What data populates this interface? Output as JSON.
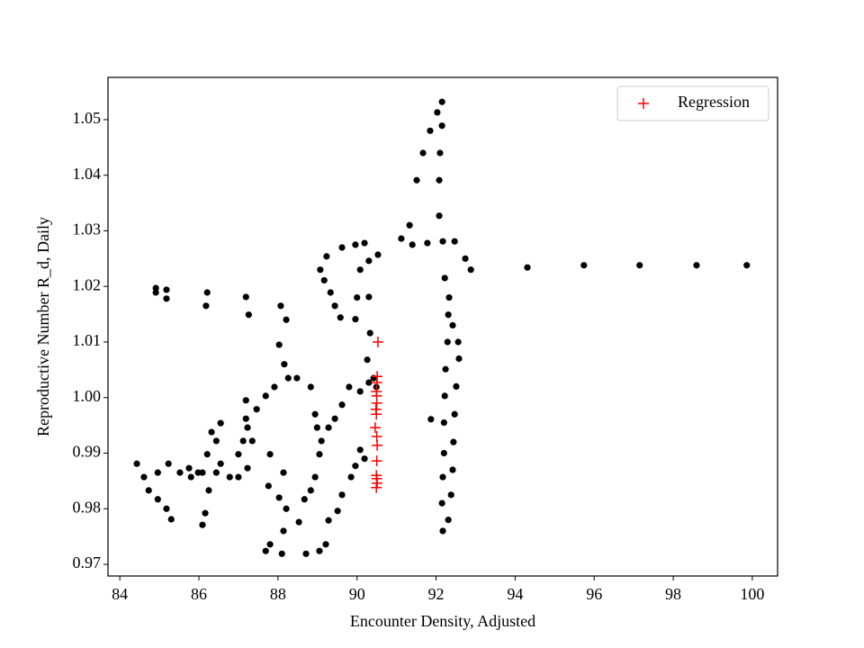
{
  "chart_data": {
    "type": "scatter",
    "xlabel": "Encounter Density, Adjusted",
    "ylabel": "Reproductive Number R_d, Daily",
    "xlim": [
      83.7,
      100.64
    ],
    "ylim": [
      0.9679,
      1.0576
    ],
    "xticks": [
      84,
      86,
      88,
      90,
      92,
      94,
      96,
      98,
      100
    ],
    "yticks": [
      0.97,
      0.98,
      0.99,
      {
        "value": 1,
        "label": "1.00"
      },
      1.01,
      1.02,
      1.03,
      1.04,
      1.05
    ],
    "legend": "upper right",
    "series": [
      {
        "color": "#000000",
        "marker": "dot",
        "x": [
          94.31,
          95.74,
          97.15,
          98.59,
          99.86,
          92.88,
          92.74,
          92.22,
          92.33,
          92.42,
          92.56,
          92.58,
          92.51,
          92.47,
          92.44,
          92.42,
          92.38,
          92.31,
          92.17,
          92.15,
          92.17,
          92.2,
          92.2,
          92.22,
          92.24,
          92.29,
          92.31,
          91.87,
          91.33,
          91.51,
          91.67,
          91.85,
          92.03,
          92.15,
          92.15,
          92.1,
          92.08,
          92.08,
          92.17,
          91.12,
          91.4,
          91.78,
          92.47,
          90.19,
          89.96,
          89.62,
          89.23,
          89.07,
          89.17,
          89.33,
          89.44,
          89.58,
          89.96,
          90.0,
          90.08,
          90.3,
          90.53,
          90.3,
          90.33,
          90.26,
          90.42,
          90.49,
          90.3,
          90.08,
          89.8,
          89.62,
          89.44,
          89.28,
          89.1,
          89.05,
          88.94,
          88.83,
          88.67,
          88.53,
          88.14,
          87.8,
          87.69,
          88.1,
          88.71,
          89.05,
          89.21,
          89.28,
          89.51,
          89.62,
          89.85,
          90.08,
          90.19,
          89.96,
          88.03,
          88.21,
          88.07,
          88.16,
          88.26,
          87.91,
          87.69,
          87.46,
          87.23,
          87.12,
          87.0,
          87.35,
          87.8,
          88.14,
          88.03,
          88.21,
          87.76,
          88.83,
          88.94,
          88.99,
          88.48,
          84.43,
          84.61,
          84.73,
          84.96,
          85.18,
          85.3,
          84.96,
          85.23,
          85.52,
          85.75,
          86.09,
          86.44,
          86.78,
          87.0,
          87.23,
          86.21,
          86.32,
          86.55,
          86.44,
          86.55,
          86.25,
          86.16,
          86.09,
          85.98,
          85.8,
          84.91,
          84.91,
          85.18,
          85.18,
          86.21,
          86.18,
          87.19,
          87.26,
          87.19,
          87.19
        ],
        "values": [
          1.0234,
          1.0238,
          1.0238,
          1.0238,
          1.0238,
          1.023,
          1.025,
          1.0215,
          1.018,
          1.013,
          1.01,
          1.007,
          1.002,
          0.997,
          0.992,
          0.987,
          0.9825,
          0.978,
          0.976,
          0.981,
          0.9857,
          0.99,
          0.9955,
          1.0003,
          1.0051,
          1.01,
          1.0149,
          0.9961,
          1.031,
          1.0391,
          1.044,
          1.048,
          1.0513,
          1.0532,
          1.0489,
          1.044,
          1.0391,
          1.0327,
          1.0281,
          1.0286,
          1.0275,
          1.0278,
          1.0281,
          1.0278,
          1.0275,
          1.027,
          1.0254,
          1.023,
          1.0211,
          1.0189,
          1.0165,
          1.0144,
          1.0141,
          1.018,
          1.023,
          1.0246,
          1.0257,
          1.0181,
          1.0116,
          1.0068,
          1.0035,
          1.0019,
          1.0027,
          1.0011,
          1.0019,
          0.9987,
          0.9962,
          0.9946,
          0.9922,
          0.9898,
          0.9857,
          0.9833,
          0.9817,
          0.9776,
          0.976,
          0.9736,
          0.9724,
          0.9719,
          0.9719,
          0.9724,
          0.9736,
          0.9779,
          0.9796,
          0.9825,
          0.9857,
          0.9906,
          0.989,
          0.9877,
          1.0095,
          1.014,
          1.0165,
          1.006,
          1.0035,
          1.0019,
          1.0003,
          0.9979,
          0.9946,
          0.9922,
          0.9898,
          0.9922,
          0.9898,
          0.9865,
          0.982,
          0.98,
          0.9841,
          1.0019,
          0.997,
          0.9946,
          1.0035,
          0.9881,
          0.9857,
          0.9833,
          0.9817,
          0.98,
          0.9781,
          0.9865,
          0.9881,
          0.9865,
          0.9873,
          0.9865,
          0.9865,
          0.9857,
          0.9857,
          0.9873,
          0.9898,
          0.9938,
          0.9954,
          0.9922,
          0.9881,
          0.9833,
          0.9792,
          0.9771,
          0.9865,
          0.9857,
          1.0197,
          1.0189,
          1.0194,
          1.0178,
          1.0189,
          1.0165,
          1.0181,
          1.0149,
          0.9995,
          0.9962
        ]
      },
      {
        "name": "Regression",
        "color": "#ff0000",
        "marker": "plus",
        "x": [
          90.53,
          90.51,
          90.5,
          90.49,
          90.5,
          90.5,
          90.48,
          90.49,
          90.46,
          90.5,
          90.51,
          90.5,
          90.49,
          90.5,
          90.51,
          90.49
        ],
        "values": [
          1.01,
          1.0038,
          1.0027,
          1.0011,
          1.0003,
          0.999,
          0.9979,
          0.997,
          0.9946,
          0.993,
          0.9914,
          0.9886,
          0.986,
          0.9854,
          0.9846,
          0.9838
        ]
      }
    ]
  }
}
